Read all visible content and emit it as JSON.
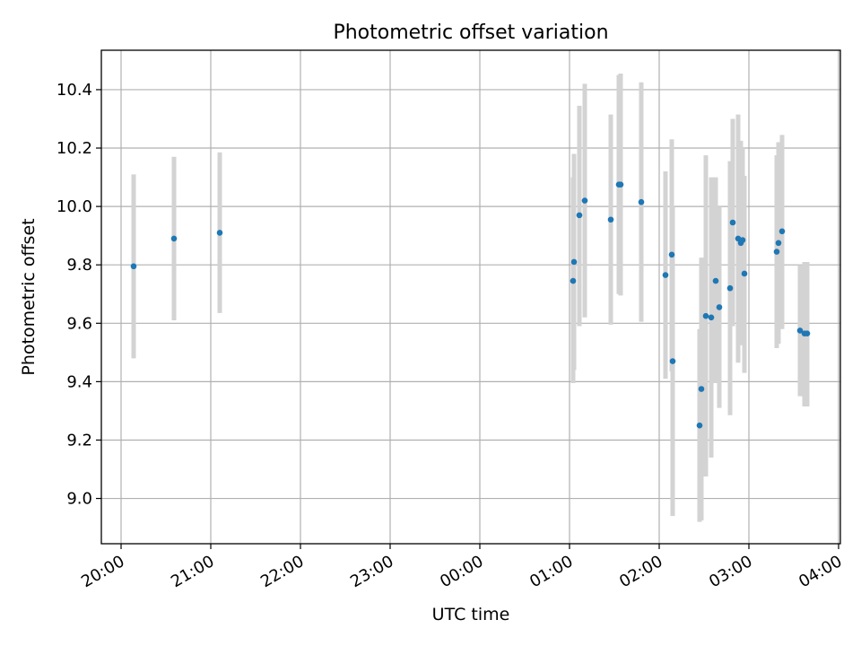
{
  "chart_data": {
    "type": "scatter",
    "title": "Photometric offset variation",
    "xlabel": "UTC time",
    "ylabel": "Photometric offset",
    "grid": true,
    "legend": "none",
    "xlim_hours": [
      -4.22,
      4.02
    ],
    "ylim": [
      8.845,
      10.535
    ],
    "x_ticks": [
      {
        "hour": -4,
        "label": "20:00"
      },
      {
        "hour": -3,
        "label": "21:00"
      },
      {
        "hour": -2,
        "label": "22:00"
      },
      {
        "hour": -1,
        "label": "23:00"
      },
      {
        "hour": 0,
        "label": "00:00"
      },
      {
        "hour": 1,
        "label": "01:00"
      },
      {
        "hour": 2,
        "label": "02:00"
      },
      {
        "hour": 3,
        "label": "03:00"
      },
      {
        "hour": 4,
        "label": "04:00"
      }
    ],
    "y_ticks": [
      {
        "value": 9.0,
        "label": "9.0"
      },
      {
        "value": 9.2,
        "label": "9.2"
      },
      {
        "value": 9.4,
        "label": "9.4"
      },
      {
        "value": 9.6,
        "label": "9.6"
      },
      {
        "value": 9.8,
        "label": "9.8"
      },
      {
        "value": 10.0,
        "label": "10.0"
      },
      {
        "value": 10.2,
        "label": "10.2"
      },
      {
        "value": 10.4,
        "label": "10.4"
      }
    ],
    "colors": {
      "point": "#1f77b4",
      "errorbar": "#d3d3d3",
      "grid": "#b0b0b0",
      "axis": "#000000"
    },
    "points": [
      {
        "t": -3.86,
        "y": 9.795,
        "lo": 9.48,
        "hi": 10.11
      },
      {
        "t": -3.41,
        "y": 9.89,
        "lo": 9.61,
        "hi": 10.17
      },
      {
        "t": -2.9,
        "y": 9.91,
        "lo": 9.635,
        "hi": 10.185
      },
      {
        "t": 1.04,
        "y": 9.745,
        "lo": 9.395,
        "hi": 10.1
      },
      {
        "t": 1.05,
        "y": 9.81,
        "lo": 9.44,
        "hi": 10.18
      },
      {
        "t": 1.11,
        "y": 9.97,
        "lo": 9.59,
        "hi": 10.345
      },
      {
        "t": 1.17,
        "y": 10.02,
        "lo": 9.62,
        "hi": 10.42
      },
      {
        "t": 1.46,
        "y": 9.955,
        "lo": 9.595,
        "hi": 10.315
      },
      {
        "t": 1.55,
        "y": 10.075,
        "lo": 9.7,
        "hi": 10.45
      },
      {
        "t": 1.57,
        "y": 10.075,
        "lo": 9.695,
        "hi": 10.455
      },
      {
        "t": 1.8,
        "y": 10.015,
        "lo": 9.605,
        "hi": 10.425
      },
      {
        "t": 2.07,
        "y": 9.765,
        "lo": 9.41,
        "hi": 10.12
      },
      {
        "t": 2.14,
        "y": 9.835,
        "lo": 9.435,
        "hi": 10.23
      },
      {
        "t": 2.15,
        "y": 9.47,
        "lo": 8.94,
        "hi": 10.0
      },
      {
        "t": 2.45,
        "y": 9.25,
        "lo": 8.92,
        "hi": 9.58
      },
      {
        "t": 2.47,
        "y": 9.375,
        "lo": 8.925,
        "hi": 9.825
      },
      {
        "t": 2.52,
        "y": 9.625,
        "lo": 9.075,
        "hi": 10.175
      },
      {
        "t": 2.58,
        "y": 9.62,
        "lo": 9.14,
        "hi": 10.1
      },
      {
        "t": 2.63,
        "y": 9.745,
        "lo": 9.395,
        "hi": 10.1
      },
      {
        "t": 2.67,
        "y": 9.655,
        "lo": 9.31,
        "hi": 10.0
      },
      {
        "t": 2.79,
        "y": 9.72,
        "lo": 9.285,
        "hi": 10.155
      },
      {
        "t": 2.82,
        "y": 9.945,
        "lo": 9.59,
        "hi": 10.3
      },
      {
        "t": 2.88,
        "y": 9.89,
        "lo": 9.465,
        "hi": 10.315
      },
      {
        "t": 2.91,
        "y": 9.875,
        "lo": 9.525,
        "hi": 10.225
      },
      {
        "t": 2.93,
        "y": 9.885,
        "lo": 9.57,
        "hi": 10.2
      },
      {
        "t": 2.95,
        "y": 9.77,
        "lo": 9.43,
        "hi": 10.105
      },
      {
        "t": 3.31,
        "y": 9.845,
        "lo": 9.515,
        "hi": 10.175
      },
      {
        "t": 3.33,
        "y": 9.875,
        "lo": 9.53,
        "hi": 10.22
      },
      {
        "t": 3.37,
        "y": 9.915,
        "lo": 9.58,
        "hi": 10.245
      },
      {
        "t": 3.57,
        "y": 9.575,
        "lo": 9.35,
        "hi": 9.8
      },
      {
        "t": 3.62,
        "y": 9.565,
        "lo": 9.315,
        "hi": 9.81
      },
      {
        "t": 3.65,
        "y": 9.565,
        "lo": 9.315,
        "hi": 9.81
      }
    ]
  }
}
